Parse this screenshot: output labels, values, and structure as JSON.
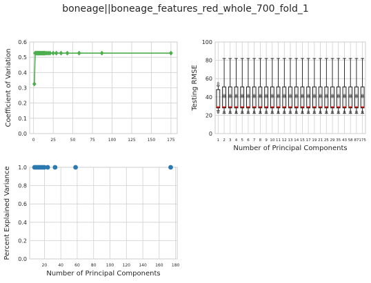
{
  "figure": {
    "title": "boneage||boneage_features_red_whole_700_fold_1"
  },
  "chart_data": [
    {
      "type": "line",
      "ylabel": "Coefficient of Variation",
      "xlabel": "",
      "xlim": [
        -5,
        183
      ],
      "ylim": [
        0.0,
        0.6
      ],
      "xticks": [
        0,
        25,
        50,
        75,
        100,
        125,
        150,
        175
      ],
      "yticks": [
        0.0,
        0.1,
        0.2,
        0.3,
        0.4,
        0.5,
        0.6
      ],
      "ytick_labels": [
        "0.0",
        "0.1",
        "0.2",
        "0.3",
        "0.4",
        "0.5",
        "0.6"
      ],
      "grid": true,
      "color": "#4cae4c",
      "marker": "diamond",
      "x": [
        1,
        2,
        3,
        4,
        5,
        6,
        7,
        8,
        9,
        10,
        11,
        12,
        13,
        14,
        15,
        17,
        19,
        21,
        25,
        29,
        35,
        43,
        58,
        87,
        175
      ],
      "y": [
        0.325,
        0.527,
        0.527,
        0.527,
        0.527,
        0.527,
        0.527,
        0.527,
        0.527,
        0.527,
        0.527,
        0.527,
        0.527,
        0.527,
        0.527,
        0.527,
        0.527,
        0.527,
        0.527,
        0.527,
        0.527,
        0.527,
        0.527,
        0.527,
        0.527
      ]
    },
    {
      "type": "box",
      "ylabel": "Testing RMSE",
      "xlabel": "Number of Principal Components",
      "ylim": [
        0,
        100
      ],
      "yticks": [
        0,
        20,
        40,
        60,
        80,
        100
      ],
      "grid": true,
      "categories": [
        "1",
        "2",
        "3",
        "4",
        "5",
        "6",
        "7",
        "8",
        "9",
        "10",
        "11",
        "12",
        "13",
        "14",
        "15",
        "17",
        "19",
        "21",
        "25",
        "29",
        "35",
        "43",
        "58",
        "87",
        "175"
      ],
      "median_color": "#e00000",
      "boxes": [
        {
          "whislo": 25,
          "q1": 28,
          "med": 29,
          "q3": 48,
          "whishi": 52,
          "fliers": [
            23,
            24,
            53,
            55
          ]
        },
        {
          "whislo": 22,
          "q1": 28,
          "med": 29,
          "q3": 51,
          "whishi": 82,
          "fliers": [
            23,
            24,
            40,
            41,
            42
          ]
        },
        {
          "whislo": 22,
          "q1": 28,
          "med": 29,
          "q3": 51,
          "whishi": 82,
          "fliers": [
            23,
            24,
            40,
            41,
            42
          ]
        },
        {
          "whislo": 22,
          "q1": 28,
          "med": 29,
          "q3": 51,
          "whishi": 82,
          "fliers": [
            23,
            24,
            40,
            41,
            42
          ]
        },
        {
          "whislo": 22,
          "q1": 28,
          "med": 29,
          "q3": 51,
          "whishi": 82,
          "fliers": [
            23,
            24,
            40,
            41,
            42
          ]
        },
        {
          "whislo": 22,
          "q1": 28,
          "med": 29,
          "q3": 51,
          "whishi": 82,
          "fliers": [
            23,
            24,
            40,
            41,
            42
          ]
        },
        {
          "whislo": 22,
          "q1": 28,
          "med": 29,
          "q3": 51,
          "whishi": 82,
          "fliers": [
            23,
            24,
            40,
            41,
            42
          ]
        },
        {
          "whislo": 22,
          "q1": 28,
          "med": 29,
          "q3": 51,
          "whishi": 82,
          "fliers": [
            23,
            24,
            40,
            41,
            42
          ]
        },
        {
          "whislo": 22,
          "q1": 28,
          "med": 29,
          "q3": 51,
          "whishi": 82,
          "fliers": [
            23,
            24,
            40,
            41,
            42
          ]
        },
        {
          "whislo": 22,
          "q1": 28,
          "med": 29,
          "q3": 51,
          "whishi": 82,
          "fliers": [
            23,
            24,
            40,
            41,
            42
          ]
        },
        {
          "whislo": 22,
          "q1": 28,
          "med": 29,
          "q3": 51,
          "whishi": 82,
          "fliers": [
            23,
            24,
            40,
            41,
            42
          ]
        },
        {
          "whislo": 22,
          "q1": 28,
          "med": 29,
          "q3": 51,
          "whishi": 82,
          "fliers": [
            23,
            24,
            40,
            41,
            42
          ]
        },
        {
          "whislo": 22,
          "q1": 28,
          "med": 29,
          "q3": 51,
          "whishi": 82,
          "fliers": [
            23,
            24,
            40,
            41,
            42
          ]
        },
        {
          "whislo": 22,
          "q1": 28,
          "med": 29,
          "q3": 51,
          "whishi": 82,
          "fliers": [
            23,
            24,
            40,
            41,
            42
          ]
        },
        {
          "whislo": 22,
          "q1": 28,
          "med": 29,
          "q3": 51,
          "whishi": 82,
          "fliers": [
            23,
            24,
            40,
            41,
            42
          ]
        },
        {
          "whislo": 22,
          "q1": 28,
          "med": 29,
          "q3": 51,
          "whishi": 82,
          "fliers": [
            23,
            24,
            40,
            41,
            42
          ]
        },
        {
          "whislo": 22,
          "q1": 28,
          "med": 29,
          "q3": 51,
          "whishi": 82,
          "fliers": [
            23,
            24,
            40,
            41,
            42
          ]
        },
        {
          "whislo": 22,
          "q1": 28,
          "med": 29,
          "q3": 51,
          "whishi": 82,
          "fliers": [
            23,
            24,
            40,
            41,
            42
          ]
        },
        {
          "whislo": 22,
          "q1": 28,
          "med": 29,
          "q3": 51,
          "whishi": 82,
          "fliers": [
            23,
            24,
            40,
            41,
            42
          ]
        },
        {
          "whislo": 22,
          "q1": 28,
          "med": 29,
          "q3": 51,
          "whishi": 82,
          "fliers": [
            23,
            24,
            40,
            41,
            42
          ]
        },
        {
          "whislo": 22,
          "q1": 28,
          "med": 29,
          "q3": 51,
          "whishi": 82,
          "fliers": [
            23,
            24,
            40,
            41,
            42
          ]
        },
        {
          "whislo": 22,
          "q1": 28,
          "med": 29,
          "q3": 51,
          "whishi": 82,
          "fliers": [
            23,
            24,
            40,
            41,
            42
          ]
        },
        {
          "whislo": 22,
          "q1": 28,
          "med": 29,
          "q3": 51,
          "whishi": 82,
          "fliers": [
            23,
            24,
            40,
            41,
            42
          ]
        },
        {
          "whislo": 22,
          "q1": 28,
          "med": 29,
          "q3": 51,
          "whishi": 82,
          "fliers": [
            23,
            24,
            40,
            41,
            42
          ]
        },
        {
          "whislo": 22,
          "q1": 28,
          "med": 29,
          "q3": 51,
          "whishi": 82,
          "fliers": [
            23,
            24,
            40,
            41,
            42
          ]
        }
      ]
    },
    {
      "type": "scatter",
      "ylabel": "Percent Explained Variance",
      "xlabel": "Number of Principal Components",
      "xlim": [
        2,
        182
      ],
      "ylim": [
        0.0,
        1.0
      ],
      "xticks": [
        20,
        40,
        60,
        80,
        100,
        120,
        140,
        160,
        180
      ],
      "yticks": [
        0.0,
        0.2,
        0.4,
        0.6,
        0.8,
        1.0
      ],
      "ytick_labels": [
        "0.0",
        "0.2",
        "0.4",
        "0.6",
        "0.8",
        "1.0"
      ],
      "grid": true,
      "color": "#2a7ab0",
      "x": [
        8,
        10,
        12,
        14,
        16,
        18,
        20,
        24,
        33,
        58,
        174
      ],
      "y": [
        1.0,
        1.0,
        1.0,
        1.0,
        1.0,
        1.0,
        1.0,
        1.0,
        1.0,
        1.0,
        1.0
      ]
    }
  ]
}
